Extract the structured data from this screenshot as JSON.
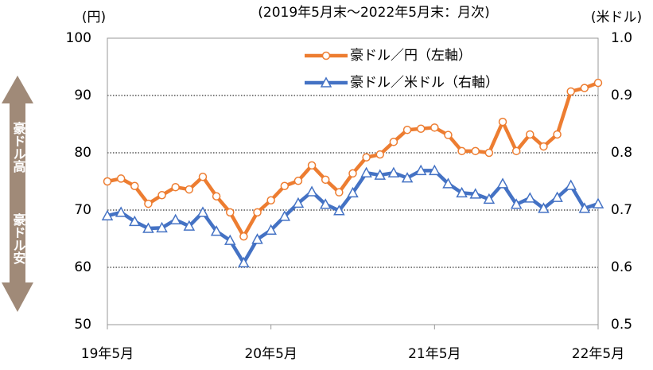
{
  "chart_data": {
    "type": "line",
    "subtitle": "(2019年5月末～2022年5月末：月次)",
    "y_label": "(円)",
    "y2_label": "(米ドル)",
    "annotations": [
      "豪ドル高",
      "豪ドル安"
    ],
    "categories": [
      "19年5月",
      null,
      null,
      null,
      null,
      null,
      null,
      null,
      null,
      null,
      null,
      null,
      "20年5月",
      null,
      null,
      null,
      null,
      null,
      null,
      null,
      null,
      null,
      null,
      null,
      "21年5月",
      null,
      null,
      null,
      null,
      null,
      null,
      null,
      null,
      null,
      null,
      null,
      "22年5月"
    ],
    "series": [
      {
        "name": "豪ドル／円（左軸）",
        "color": "#ed7d31",
        "marker": "circle",
        "values": [
          75,
          75.5,
          74.2,
          71.1,
          72.6,
          74,
          73.6,
          75.8,
          72.4,
          69.6,
          65.4,
          69.6,
          71.7,
          74.2,
          75.1,
          77.8,
          75.3,
          73.1,
          76.4,
          79.2,
          79.7,
          81.9,
          84,
          84.2,
          84.4,
          83.1,
          80.3,
          80.3,
          80,
          85.4,
          80.3,
          83.2,
          81.1,
          83.2,
          90.7,
          91.3,
          92.2
        ]
      },
      {
        "name": "豪ドル／米ドル（右軸）",
        "color": "#4472c4",
        "marker": "triangle",
        "axis": "y2",
        "values": [
          0.69,
          0.696,
          0.68,
          0.668,
          0.669,
          0.683,
          0.672,
          0.696,
          0.663,
          0.647,
          0.608,
          0.649,
          0.665,
          0.689,
          0.712,
          0.732,
          0.71,
          0.699,
          0.73,
          0.765,
          0.761,
          0.765,
          0.756,
          0.769,
          0.769,
          0.746,
          0.73,
          0.728,
          0.719,
          0.746,
          0.71,
          0.721,
          0.703,
          0.722,
          0.743,
          0.703,
          0.711
        ]
      }
    ],
    "ylim": [
      50,
      100
    ],
    "yticks": [
      50,
      60,
      70,
      80,
      90,
      100
    ],
    "y2lim": [
      0.5,
      1
    ],
    "y2ticks": [
      0.5,
      0.6,
      0.7,
      0.8,
      0.9,
      {
        "value": 1,
        "label": "1.0"
      }
    ],
    "grid": true
  }
}
